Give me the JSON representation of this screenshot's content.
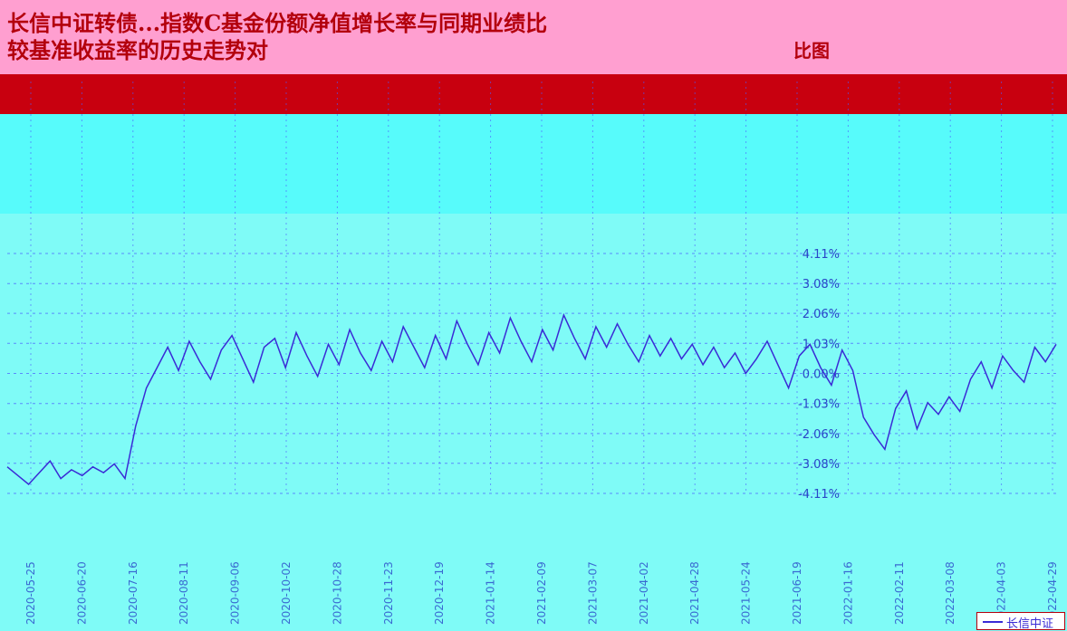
{
  "title": {
    "line1": "长信中证转债...指数C基金份额净值增长率与同期业绩比",
    "line2": "较基准收益率的历史走势对",
    "line2b": "比图"
  },
  "legend": {
    "label": "长信中证"
  },
  "colors": {
    "line": "#3a2bd6",
    "grid": "#4a5cff",
    "label": "#2a46c8",
    "title": "#b3000c"
  },
  "chart_data": {
    "type": "line",
    "title": "长信中证转债...指数C基金份额净值增长率与同期业绩比较基准收益率的历史走势对比图",
    "xlabel": "",
    "ylabel": "",
    "ylim": [
      -4.11,
      4.11
    ],
    "y_ticks": [
      "4.11%",
      "3.08%",
      "2.06%",
      "1.03%",
      "0.00%",
      "-1.03%",
      "-2.06%",
      "-3.08%",
      "-4.11%"
    ],
    "x_ticks": [
      "2020-05-25",
      "2020-06-20",
      "2020-07-16",
      "2020-08-11",
      "2020-09-06",
      "2020-10-02",
      "2020-10-28",
      "2020-11-23",
      "2020-12-19",
      "2021-01-14",
      "2021-02-09",
      "2021-03-07",
      "2021-04-02",
      "2021-04-28",
      "2021-05-24",
      "2021-06-19",
      "2022-01-16",
      "2022-02-11",
      "2022-03-08",
      "2022-04-03",
      "2022-04-29"
    ],
    "series": [
      {
        "name": "长信中证",
        "values": [
          -3.2,
          -3.5,
          -3.8,
          -3.4,
          -3.0,
          -3.6,
          -3.3,
          -3.5,
          -3.2,
          -3.4,
          -3.1,
          -3.6,
          -1.8,
          -0.5,
          0.2,
          0.9,
          0.1,
          1.1,
          0.4,
          -0.2,
          0.8,
          1.3,
          0.5,
          -0.3,
          0.9,
          1.2,
          0.2,
          1.4,
          0.6,
          -0.1,
          1.0,
          0.3,
          1.5,
          0.7,
          0.1,
          1.1,
          0.4,
          1.6,
          0.9,
          0.2,
          1.3,
          0.5,
          1.8,
          1.0,
          0.3,
          1.4,
          0.7,
          1.9,
          1.1,
          0.4,
          1.5,
          0.8,
          2.0,
          1.2,
          0.5,
          1.6,
          0.9,
          1.7,
          1.0,
          0.4,
          1.3,
          0.6,
          1.2,
          0.5,
          1.0,
          0.3,
          0.9,
          0.2,
          0.7,
          0.0,
          0.5,
          1.1,
          0.3,
          -0.5,
          0.6,
          1.0,
          0.2,
          -0.4,
          0.8,
          0.1,
          -1.5,
          -2.1,
          -2.6,
          -1.2,
          -0.6,
          -1.9,
          -1.0,
          -1.4,
          -0.8,
          -1.3,
          -0.2,
          0.4,
          -0.5,
          0.6,
          0.1,
          -0.3,
          0.9,
          0.4,
          1.0
        ]
      }
    ],
    "grid": true
  }
}
